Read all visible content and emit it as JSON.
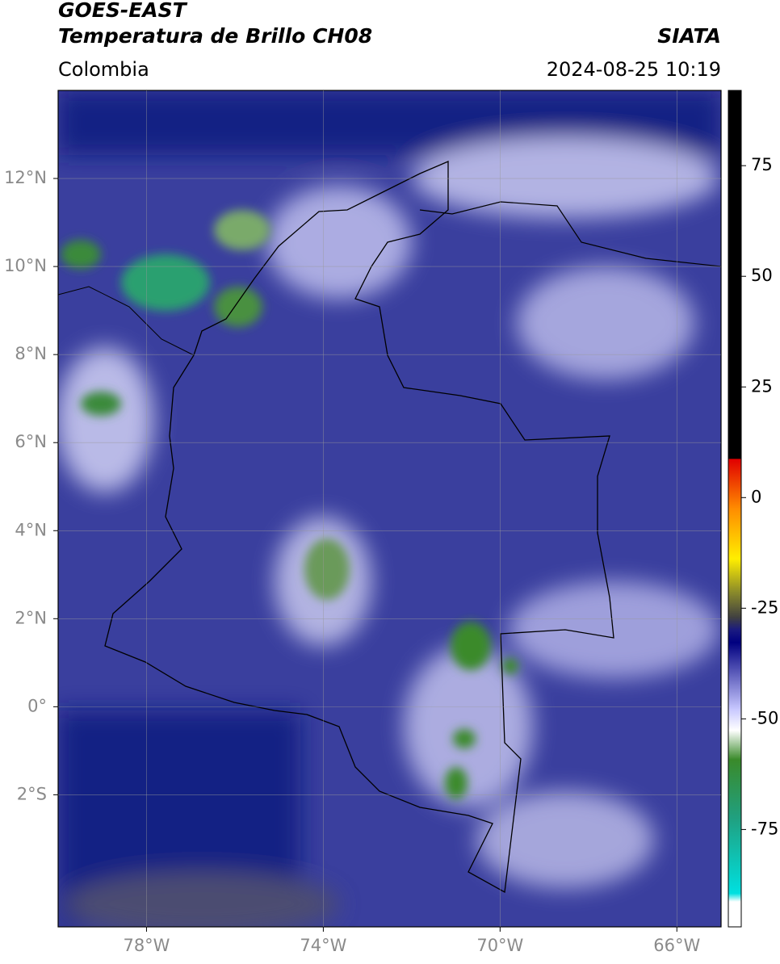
{
  "header": {
    "title": "GOES-EAST",
    "subtitle": "Temperatura de Brillo CH08",
    "region": "Colombia",
    "source": "SIATA",
    "datetime": "2024-08-25 10:19"
  },
  "map": {
    "lonlim": [
      -80,
      -65
    ],
    "latlim": [
      -5,
      14
    ],
    "lon_ticks": [
      {
        "value": -78,
        "label": "78°W"
      },
      {
        "value": -74,
        "label": "74°W"
      },
      {
        "value": -70,
        "label": "70°W"
      },
      {
        "value": -66,
        "label": "66°W"
      }
    ],
    "lat_ticks": [
      {
        "value": 12,
        "label": "12°N"
      },
      {
        "value": 10,
        "label": "10°N"
      },
      {
        "value": 8,
        "label": "8°N"
      },
      {
        "value": 6,
        "label": "6°N"
      },
      {
        "value": 4,
        "label": "4°N"
      },
      {
        "value": 2,
        "label": "2°N"
      },
      {
        "value": 0,
        "label": "0°"
      },
      {
        "value": -2,
        "label": "2°S"
      }
    ]
  },
  "colorbar": {
    "range": [
      -97,
      92
    ],
    "ticks": [
      75,
      50,
      25,
      0,
      -25,
      -50,
      -75
    ]
  }
}
